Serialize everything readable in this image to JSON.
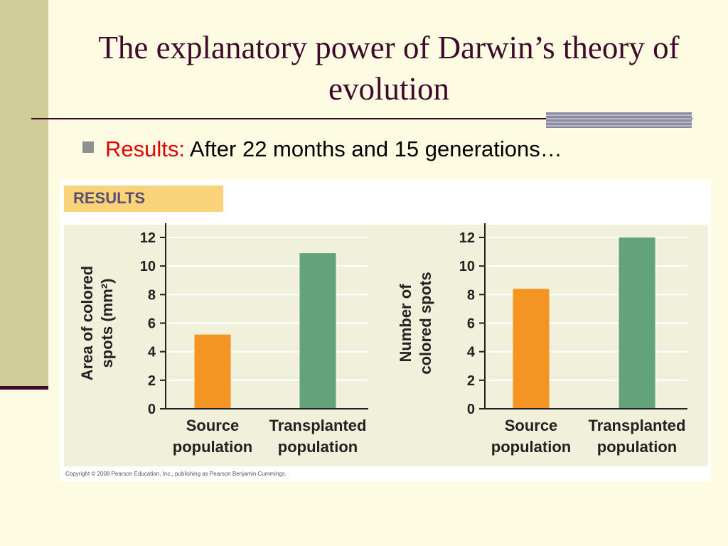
{
  "slide": {
    "title": "The explanatory power of Darwin’s theory of evolution",
    "bullet": {
      "label": "Results:",
      "text": " After 22 months and 15 generations…"
    }
  },
  "figure": {
    "header": "RESULTS",
    "copyright": "Copyright © 2008 Pearson Education, Inc., publishing as Pearson Benjamin Cummings."
  },
  "colors": {
    "title": "#3d0a2c",
    "source_bar": "#f39423",
    "transplanted_bar": "#63a37c",
    "bullet_label": "#e00000"
  },
  "chart_data": [
    {
      "type": "bar",
      "categories": [
        "Source population",
        "Transplanted population"
      ],
      "category_lines": [
        [
          "Source",
          "population"
        ],
        [
          "Transplanted",
          "population"
        ]
      ],
      "values": [
        5.2,
        10.9
      ],
      "ylabel_lines": [
        "Area of colored",
        "spots (mm²)"
      ],
      "ylim": [
        0,
        12
      ],
      "yticks": [
        0,
        2,
        4,
        6,
        8,
        10,
        12
      ],
      "grid": true
    },
    {
      "type": "bar",
      "categories": [
        "Source population",
        "Transplanted population"
      ],
      "category_lines": [
        [
          "Source",
          "population"
        ],
        [
          "Transplanted",
          "population"
        ]
      ],
      "values": [
        8.4,
        12.0
      ],
      "ylabel_lines": [
        "Number of",
        "colored spots"
      ],
      "ylim": [
        0,
        12
      ],
      "yticks": [
        0,
        2,
        4,
        6,
        8,
        10,
        12
      ],
      "grid": true
    }
  ]
}
